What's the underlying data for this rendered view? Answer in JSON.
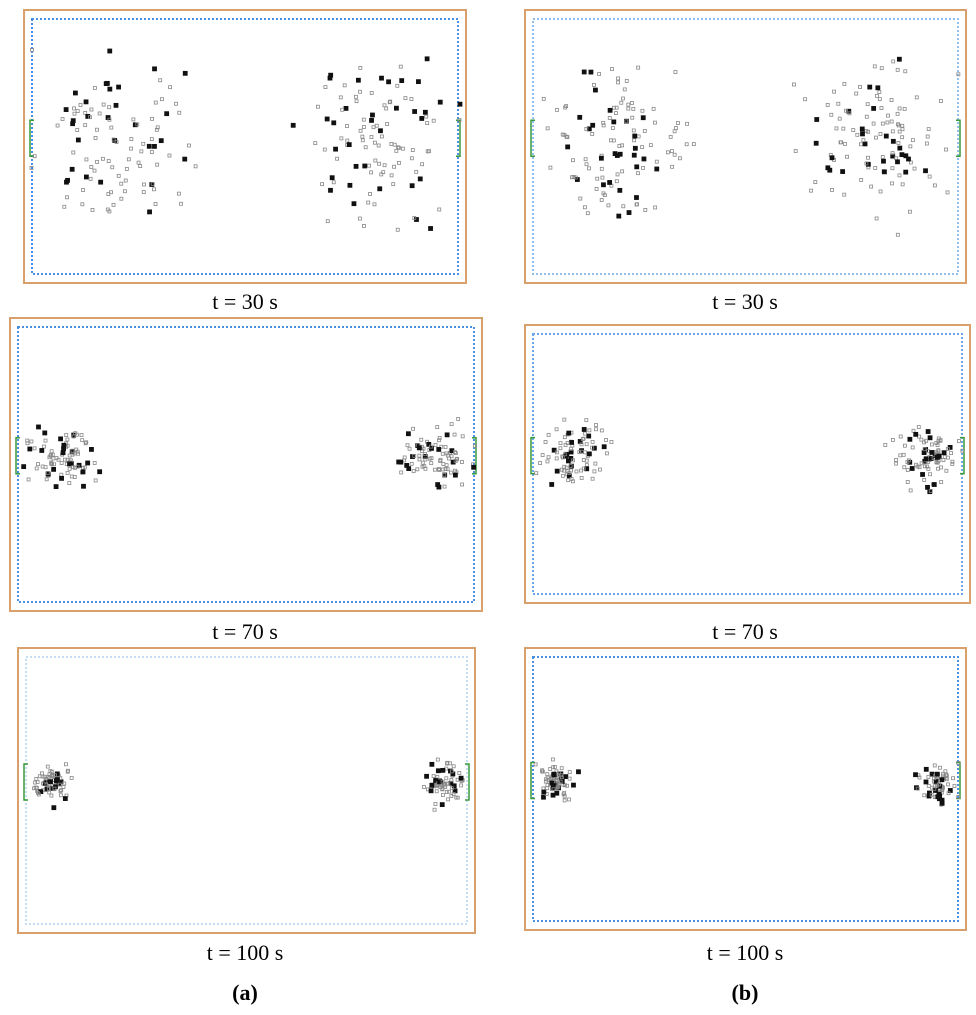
{
  "panels": [
    {
      "caption": "t = 30 s"
    },
    {
      "caption": "t = 30 s"
    },
    {
      "caption": "t = 70 s"
    },
    {
      "caption": "t = 70 s"
    },
    {
      "caption": "t = 100 s"
    },
    {
      "caption": "t = 100 s"
    }
  ],
  "columns": [
    {
      "label": "(a)"
    },
    {
      "label": "(b)"
    }
  ]
}
